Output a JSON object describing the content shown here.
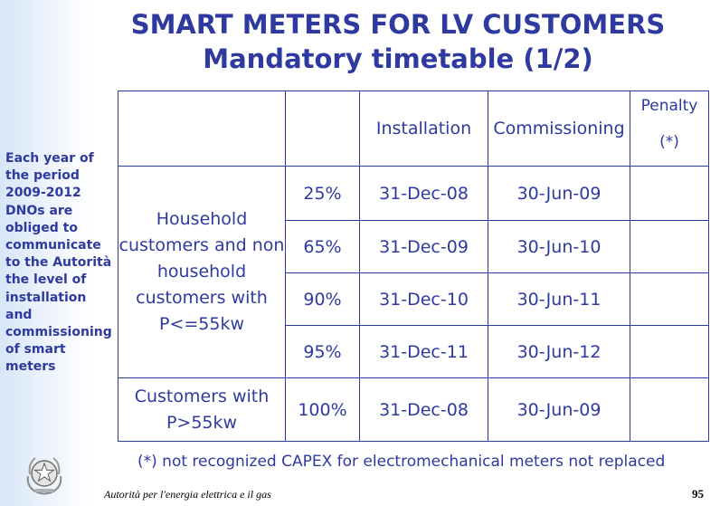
{
  "title": {
    "line1": "SMART METERS FOR LV CUSTOMERS",
    "line2": "Mandatory timetable (1/2)"
  },
  "side_note": "Each year of the period 2009-2012 DNOs are obliged to communicate to the Autorità the level of installation and commissioning of smart meters",
  "table": {
    "headers": {
      "installation": "Installation",
      "commissioning": "Commissioning",
      "penalty_line1": "Penalty",
      "penalty_line2": "(*)"
    },
    "group1_label": "Household customers and non household customers with P<=55kw",
    "group2_label": "Customers with P>55kw",
    "rows": [
      {
        "pct": "25%",
        "installation": "31-Dec-08",
        "commissioning": "30-Jun-09"
      },
      {
        "pct": "65%",
        "installation": "31-Dec-09",
        "commissioning": "30-Jun-10"
      },
      {
        "pct": "90%",
        "installation": "31-Dec-10",
        "commissioning": "30-Jun-11"
      },
      {
        "pct": "95%",
        "installation": "31-Dec-11",
        "commissioning": "30-Jun-12"
      },
      {
        "pct": "100%",
        "installation": "31-Dec-08",
        "commissioning": "30-Jun-09"
      }
    ]
  },
  "footnote": "(*) not recognized CAPEX for electromechanical meters not replaced",
  "footer": {
    "authority": "Autorità per l'energia elettrica e il gas",
    "page": "95"
  },
  "colors": {
    "text": "#2e3aa0",
    "sidebar": "#d7e6f8"
  },
  "icons": {
    "emblem": "italian-republic-emblem-icon"
  }
}
